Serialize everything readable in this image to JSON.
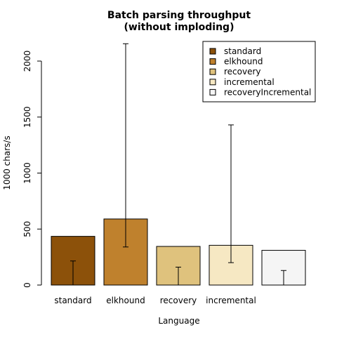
{
  "chart_data": {
    "type": "bar",
    "title": [
      "Batch parsing throughput",
      "(without imploding)"
    ],
    "xlabel": "Language",
    "ylabel": "1000 chars/s",
    "ylim": [
      0,
      2000
    ],
    "yticks": [
      0,
      500,
      1000,
      1500,
      2000
    ],
    "categories": [
      "standard",
      "elkhound",
      "recovery",
      "incremental",
      ""
    ],
    "series": [
      {
        "name": "",
        "values": [
          435,
          590,
          345,
          355,
          310
        ],
        "colors": [
          "#8C510A",
          "#BF812D",
          "#DFC27D",
          "#F6E8C3",
          "#F5F5F5"
        ],
        "error_low": [
          0,
          340,
          0,
          200,
          0
        ],
        "error_high": [
          215,
          2155,
          160,
          1430,
          130
        ]
      }
    ],
    "legend": {
      "position": "top-right",
      "entries": [
        {
          "label": "standard",
          "color": "#8C510A"
        },
        {
          "label": "elkhound",
          "color": "#BF812D"
        },
        {
          "label": "recovery",
          "color": "#DFC27D"
        },
        {
          "label": "incremental",
          "color": "#F6E8C3"
        },
        {
          "label": "recoveryIncremental",
          "color": "#F5F5F5"
        }
      ]
    },
    "grid": false
  }
}
